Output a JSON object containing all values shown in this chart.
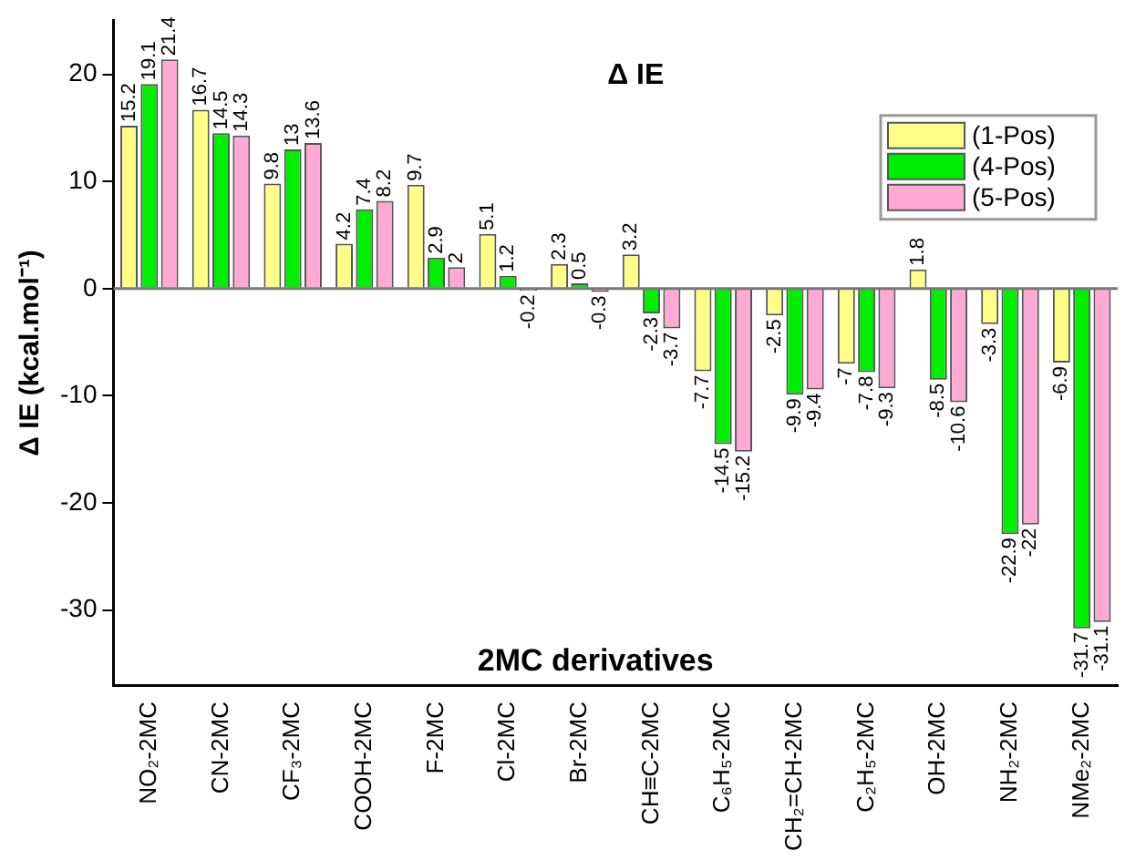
{
  "chart_data": {
    "type": "bar",
    "title": "Δ IE",
    "ylabel": "Δ IE (kcal.mol⁻¹)",
    "annotations": [
      "2MC derivatives"
    ],
    "categories": [
      "NO₂-2MC",
      "CN-2MC",
      "CF₃-2MC",
      "COOH-2MC",
      "F-2MC",
      "Cl-2MC",
      "Br-2MC",
      "CH≡C-2MC",
      "C₆H₅-2MC",
      "CH₂=CH-2MC",
      "C₂H₅-2MC",
      "OH-2MC",
      "NH₂-2MC",
      "NMe₂-2MC"
    ],
    "series": [
      {
        "name": "(1-Pos)",
        "color": "#ffff88",
        "values": [
          15.2,
          16.7,
          9.8,
          4.2,
          9.7,
          5.1,
          2.3,
          3.2,
          -7.7,
          -2.5,
          -7,
          1.8,
          -3.3,
          -6.9
        ]
      },
      {
        "name": "(4-Pos)",
        "color": "#00ee00",
        "values": [
          19.1,
          14.5,
          13,
          7.4,
          2.9,
          1.2,
          0.5,
          -2.3,
          -14.5,
          -9.9,
          -7.8,
          -8.5,
          -22.9,
          -31.7
        ]
      },
      {
        "name": "(5-Pos)",
        "color": "#ffaad4",
        "values": [
          21.4,
          14.3,
          13.6,
          8.2,
          2,
          -0.2,
          -0.3,
          -3.7,
          -15.2,
          -9.4,
          -9.3,
          -10.6,
          -22,
          -31.1
        ]
      }
    ],
    "ylim": [
      -37,
      25
    ],
    "ref_lines": [
      {
        "axis": "y",
        "value": 0,
        "color": "#777777"
      }
    ],
    "yticks": [
      -30,
      -20,
      -10,
      0,
      10,
      20
    ],
    "grid": false,
    "legend": "top right",
    "data_labels": true
  }
}
